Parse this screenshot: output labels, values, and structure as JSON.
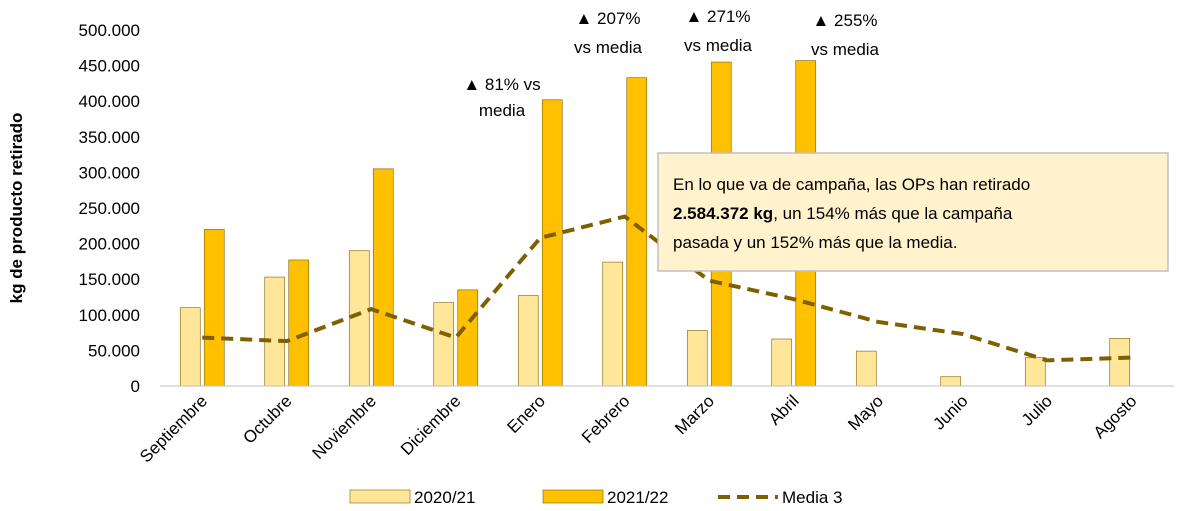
{
  "chart_data": {
    "type": "bar",
    "ylabel": "kg de producto retirado",
    "categories": [
      "Septiembre",
      "Octubre",
      "Noviembre",
      "Diciembre",
      "Enero",
      "Febrero",
      "Marzo",
      "Abril",
      "Mayo",
      "Junio",
      "Julio",
      "Agosto"
    ],
    "series": [
      {
        "name": "2020/21",
        "type": "bar",
        "color": "#ffe699",
        "values": [
          110000,
          153000,
          190000,
          117000,
          127000,
          174000,
          78000,
          66000,
          49000,
          13000,
          40000,
          67000
        ]
      },
      {
        "name": "2021/22",
        "type": "bar",
        "color": "#ffc000",
        "values": [
          220000,
          177000,
          305000,
          135000,
          402000,
          433000,
          455000,
          457000,
          null,
          null,
          null,
          null
        ]
      },
      {
        "name": "Media 3",
        "type": "line",
        "color": "#7f6000",
        "dashed": true,
        "values": [
          68000,
          63000,
          108000,
          68000,
          208000,
          238000,
          148000,
          122000,
          90000,
          73000,
          36000,
          40000
        ]
      }
    ],
    "ylim": [
      0,
      500000
    ],
    "yticks": [
      0,
      {
        "value": 50000,
        "label": "50.000"
      },
      {
        "value": 100000,
        "label": "100.000"
      },
      {
        "value": 150000,
        "label": "150.000"
      },
      {
        "value": 200000,
        "label": "200.000"
      },
      {
        "value": 250000,
        "label": "250.000"
      },
      {
        "value": 300000,
        "label": "300.000"
      },
      {
        "value": 350000,
        "label": "350.000"
      },
      {
        "value": 400000,
        "label": "400.000"
      },
      {
        "value": 450000,
        "label": "450.000"
      },
      {
        "value": 500000,
        "label": "500.000"
      }
    ],
    "grid": false,
    "legend": "bottom",
    "annotations": [
      [
        "▲ 81% vs",
        "media"
      ],
      [
        "▲ 207%",
        "vs media"
      ],
      [
        "▲ 271%",
        "vs media"
      ],
      [
        "▲ 255%",
        "vs media"
      ]
    ],
    "textbox": {
      "line1": "En lo que va de campaña, las OPs han retirado",
      "bold": "2.584.372 kg",
      "line2": ", un 154% más que la campaña",
      "line3": "pasada y un 152% más que la media."
    }
  }
}
